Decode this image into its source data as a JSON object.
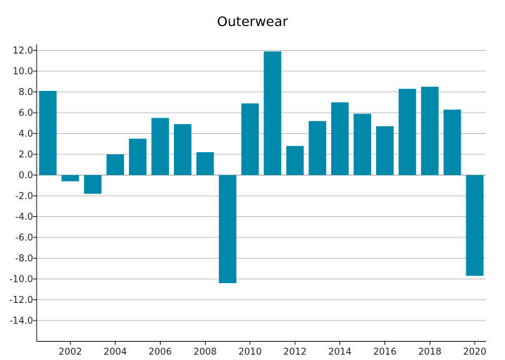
{
  "chart_data": {
    "type": "bar",
    "title": "Outerwear",
    "xlabel": "",
    "ylabel": "",
    "categories": [
      "2001",
      "2002",
      "2003",
      "2004",
      "2005",
      "2006",
      "2007",
      "2008",
      "2009",
      "2010",
      "2011",
      "2012",
      "2013",
      "2014",
      "2015",
      "2016",
      "2017",
      "2018",
      "2019",
      "2020"
    ],
    "values": [
      8.1,
      -0.6,
      -1.8,
      2.0,
      3.5,
      5.5,
      4.9,
      2.2,
      -10.4,
      6.9,
      11.9,
      2.8,
      5.2,
      7.0,
      5.9,
      4.7,
      8.3,
      8.5,
      6.3,
      -9.7
    ],
    "ylim": [
      -16,
      12.4
    ],
    "y_ticks": [
      "12.0",
      "10.0",
      "8.0",
      "6.0",
      "4.0",
      "2.0",
      "0.0",
      "-2.0",
      "-4.0",
      "-6.0",
      "-8.0",
      "-10.0",
      "-12.0",
      "-14.0"
    ],
    "x_tick_labels": [
      "2002",
      "2004",
      "2006",
      "2008",
      "2010",
      "2012",
      "2014",
      "2016",
      "2018",
      "2020"
    ],
    "grid": true,
    "legend": "none",
    "colors": {
      "bar": "#0089aa",
      "grid": "#bbbbbb",
      "axis": "#000000",
      "zero_line": "#999999"
    }
  }
}
